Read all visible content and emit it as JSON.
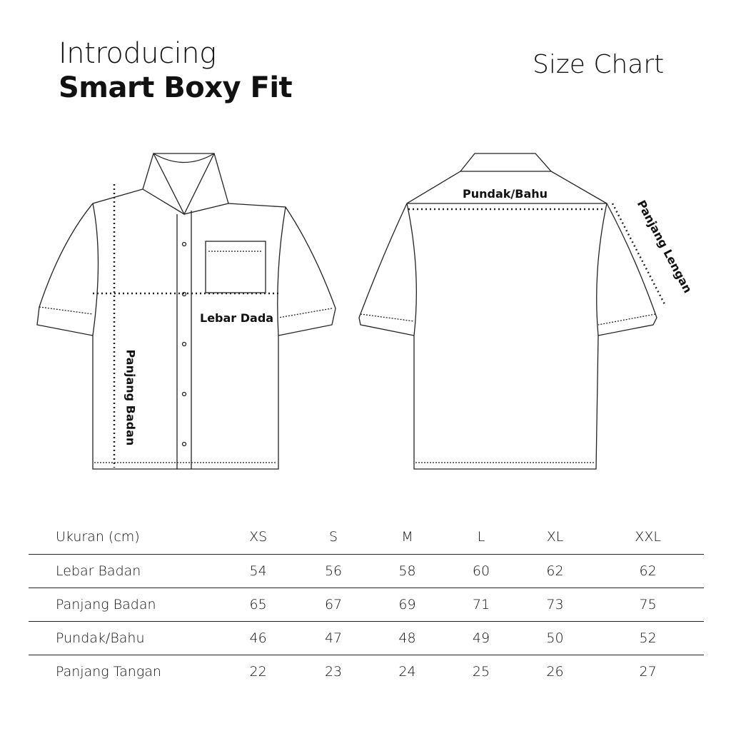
{
  "header": {
    "intro": "Introducing",
    "product": "Smart Boxy Fit",
    "chart_title": "Size Chart"
  },
  "diagram": {
    "front_labels": {
      "chest": "Lebar Dada",
      "body_length": "Panjang Badan"
    },
    "back_labels": {
      "shoulder": "Pundak/Bahu",
      "sleeve": "Panjang Lengan"
    }
  },
  "table": {
    "headers": [
      "Ukuran (cm)",
      "XS",
      "S",
      "M",
      "L",
      "XL",
      "XXL"
    ],
    "rows": [
      {
        "label": "Lebar Badan",
        "values": [
          "54",
          "56",
          "58",
          "60",
          "62",
          "62"
        ]
      },
      {
        "label": "Panjang Badan",
        "values": [
          "65",
          "67",
          "69",
          "71",
          "73",
          "75"
        ]
      },
      {
        "label": "Pundak/Bahu",
        "values": [
          "46",
          "47",
          "48",
          "49",
          "50",
          "52"
        ]
      },
      {
        "label": "Panjang Tangan",
        "values": [
          "22",
          "23",
          "24",
          "25",
          "26",
          "27"
        ]
      }
    ]
  }
}
